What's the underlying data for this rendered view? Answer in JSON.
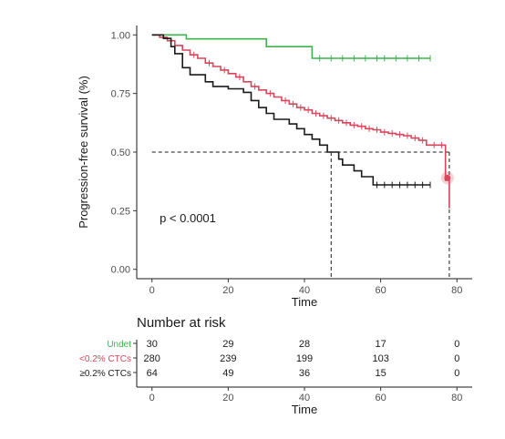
{
  "chart_data": {
    "type": "line",
    "subtype": "kaplan-meier",
    "xlabel": "Time",
    "ylabel": "Progression-free survival (%)",
    "xlim": [
      -4,
      84
    ],
    "ylim": [
      -0.04,
      1.04
    ],
    "x_ticks": [
      0,
      20,
      40,
      60,
      80
    ],
    "y_ticks": [
      0.0,
      0.25,
      0.5,
      0.75,
      1.0
    ],
    "y_tick_labels": [
      "0.00",
      "0.25",
      "0.50",
      "0.75",
      "1.00"
    ],
    "grid": false,
    "annotation": "p < 0.0001",
    "median_lines": [
      {
        "x": 47,
        "y": 0.5
      },
      {
        "x": 78,
        "y": 0.5
      }
    ],
    "series": [
      {
        "name": "Undet",
        "color": "#3cb44b",
        "points": [
          [
            0,
            1.0
          ],
          [
            9,
            1.0
          ],
          [
            9,
            0.983
          ],
          [
            30,
            0.983
          ],
          [
            30,
            0.95
          ],
          [
            42,
            0.95
          ],
          [
            42,
            0.9
          ],
          [
            73,
            0.9
          ]
        ],
        "censor_x": [
          44,
          47,
          50,
          53,
          56,
          59,
          61,
          64,
          67,
          70,
          73
        ]
      },
      {
        "name": "<0.2% CTCs",
        "color": "#d6475c",
        "points": [
          [
            0,
            1.0
          ],
          [
            2,
            1.0
          ],
          [
            2,
            0.99
          ],
          [
            4,
            0.99
          ],
          [
            4,
            0.975
          ],
          [
            6,
            0.975
          ],
          [
            6,
            0.955
          ],
          [
            8,
            0.955
          ],
          [
            8,
            0.935
          ],
          [
            10,
            0.935
          ],
          [
            10,
            0.915
          ],
          [
            12,
            0.915
          ],
          [
            12,
            0.9
          ],
          [
            14,
            0.9
          ],
          [
            14,
            0.88
          ],
          [
            16,
            0.88
          ],
          [
            16,
            0.865
          ],
          [
            18,
            0.865
          ],
          [
            18,
            0.85
          ],
          [
            20,
            0.85
          ],
          [
            20,
            0.835
          ],
          [
            22,
            0.835
          ],
          [
            22,
            0.82
          ],
          [
            24,
            0.82
          ],
          [
            24,
            0.8
          ],
          [
            26,
            0.8
          ],
          [
            26,
            0.78
          ],
          [
            28,
            0.78
          ],
          [
            28,
            0.765
          ],
          [
            30,
            0.765
          ],
          [
            30,
            0.75
          ],
          [
            32,
            0.75
          ],
          [
            32,
            0.735
          ],
          [
            34,
            0.735
          ],
          [
            34,
            0.72
          ],
          [
            36,
            0.72
          ],
          [
            36,
            0.705
          ],
          [
            38,
            0.705
          ],
          [
            38,
            0.69
          ],
          [
            40,
            0.69
          ],
          [
            40,
            0.68
          ],
          [
            42,
            0.68
          ],
          [
            42,
            0.665
          ],
          [
            44,
            0.665
          ],
          [
            44,
            0.655
          ],
          [
            46,
            0.655
          ],
          [
            46,
            0.645
          ],
          [
            48,
            0.645
          ],
          [
            48,
            0.635
          ],
          [
            50,
            0.635
          ],
          [
            50,
            0.625
          ],
          [
            52,
            0.625
          ],
          [
            52,
            0.615
          ],
          [
            54,
            0.615
          ],
          [
            54,
            0.61
          ],
          [
            56,
            0.61
          ],
          [
            56,
            0.6
          ],
          [
            58,
            0.6
          ],
          [
            58,
            0.595
          ],
          [
            60,
            0.595
          ],
          [
            60,
            0.585
          ],
          [
            62,
            0.585
          ],
          [
            62,
            0.58
          ],
          [
            64,
            0.58
          ],
          [
            64,
            0.575
          ],
          [
            66,
            0.575
          ],
          [
            66,
            0.57
          ],
          [
            68,
            0.57
          ],
          [
            68,
            0.56
          ],
          [
            70,
            0.56
          ],
          [
            70,
            0.55
          ],
          [
            72,
            0.55
          ],
          [
            72,
            0.53
          ],
          [
            77,
            0.53
          ],
          [
            77,
            0.38
          ],
          [
            78,
            0.38
          ],
          [
            78,
            0.26
          ]
        ],
        "censor_x": [
          11,
          15,
          19,
          23,
          27,
          31,
          35,
          37,
          39,
          41,
          43,
          45,
          47,
          49,
          51,
          53,
          55,
          57,
          59,
          61,
          63,
          65,
          67,
          69,
          71,
          74,
          76
        ],
        "highlight_point": [
          77.5,
          0.39
        ]
      },
      {
        "name": "≥0.2% CTCs",
        "color": "#1a1a1a",
        "points": [
          [
            0,
            1.0
          ],
          [
            3,
            1.0
          ],
          [
            3,
            0.985
          ],
          [
            5,
            0.985
          ],
          [
            5,
            0.95
          ],
          [
            6,
            0.95
          ],
          [
            6,
            0.92
          ],
          [
            8,
            0.92
          ],
          [
            8,
            0.86
          ],
          [
            10,
            0.86
          ],
          [
            10,
            0.83
          ],
          [
            14,
            0.83
          ],
          [
            14,
            0.8
          ],
          [
            16,
            0.8
          ],
          [
            16,
            0.78
          ],
          [
            20,
            0.78
          ],
          [
            20,
            0.77
          ],
          [
            24,
            0.77
          ],
          [
            24,
            0.755
          ],
          [
            26,
            0.755
          ],
          [
            26,
            0.72
          ],
          [
            28,
            0.72
          ],
          [
            28,
            0.69
          ],
          [
            30,
            0.69
          ],
          [
            30,
            0.665
          ],
          [
            32,
            0.665
          ],
          [
            32,
            0.64
          ],
          [
            36,
            0.64
          ],
          [
            36,
            0.62
          ],
          [
            38,
            0.62
          ],
          [
            38,
            0.6
          ],
          [
            40,
            0.6
          ],
          [
            40,
            0.575
          ],
          [
            42,
            0.575
          ],
          [
            42,
            0.555
          ],
          [
            44,
            0.555
          ],
          [
            44,
            0.53
          ],
          [
            46,
            0.53
          ],
          [
            46,
            0.5
          ],
          [
            49,
            0.5
          ],
          [
            49,
            0.47
          ],
          [
            50,
            0.47
          ],
          [
            50,
            0.445
          ],
          [
            53,
            0.445
          ],
          [
            53,
            0.42
          ],
          [
            55,
            0.42
          ],
          [
            55,
            0.395
          ],
          [
            58,
            0.395
          ],
          [
            58,
            0.36
          ],
          [
            73,
            0.36
          ]
        ],
        "censor_x": [
          59,
          61,
          63,
          65,
          67,
          69,
          71,
          73
        ]
      }
    ],
    "risk_table": {
      "title": "Number at risk",
      "xlabel": "Time",
      "x_ticks": [
        0,
        20,
        40,
        60,
        80
      ],
      "rows": [
        {
          "label": "Undet",
          "color": "#3cb44b",
          "values": [
            "30",
            "29",
            "28",
            "17",
            "0"
          ]
        },
        {
          "label": "<0.2% CTCs",
          "color": "#d6475c",
          "values": [
            "280",
            "239",
            "199",
            "103",
            "0"
          ]
        },
        {
          "label": "≥0.2% CTCs",
          "color": "#1a1a1a",
          "values": [
            "64",
            "49",
            "36",
            "15",
            "0"
          ]
        }
      ]
    }
  }
}
